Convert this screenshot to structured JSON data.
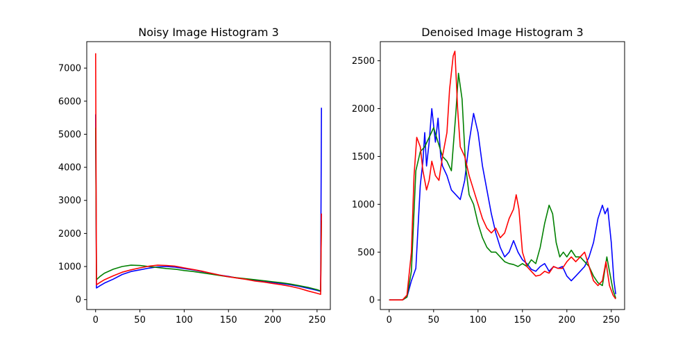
{
  "chart_data": [
    {
      "type": "line",
      "title": "Noisy Image Histogram 3",
      "xlabel": "",
      "ylabel": "",
      "xlim": [
        -10,
        265
      ],
      "ylim": [
        -300,
        7800
      ],
      "x_ticks": [
        0,
        50,
        100,
        150,
        200,
        250
      ],
      "y_ticks": [
        0,
        1000,
        2000,
        3000,
        4000,
        5000,
        6000,
        7000
      ],
      "grid": false,
      "series": [
        {
          "name": "blue",
          "color": "#0000ff",
          "points": [
            [
              0,
              5600
            ],
            [
              1,
              350
            ],
            [
              5,
              420
            ],
            [
              10,
              500
            ],
            [
              20,
              620
            ],
            [
              30,
              760
            ],
            [
              40,
              850
            ],
            [
              50,
              900
            ],
            [
              60,
              950
            ],
            [
              70,
              990
            ],
            [
              80,
              1000
            ],
            [
              90,
              980
            ],
            [
              100,
              940
            ],
            [
              110,
              900
            ],
            [
              120,
              850
            ],
            [
              130,
              800
            ],
            [
              140,
              740
            ],
            [
              150,
              700
            ],
            [
              160,
              650
            ],
            [
              170,
              620
            ],
            [
              180,
              580
            ],
            [
              190,
              560
            ],
            [
              200,
              520
            ],
            [
              210,
              490
            ],
            [
              220,
              450
            ],
            [
              230,
              400
            ],
            [
              240,
              340
            ],
            [
              250,
              280
            ],
            [
              254,
              250
            ],
            [
              255,
              5800
            ]
          ]
        },
        {
          "name": "green",
          "color": "#008000",
          "points": [
            [
              0,
              5200
            ],
            [
              1,
              600
            ],
            [
              5,
              700
            ],
            [
              10,
              800
            ],
            [
              20,
              920
            ],
            [
              30,
              1000
            ],
            [
              40,
              1040
            ],
            [
              50,
              1030
            ],
            [
              60,
              1000
            ],
            [
              70,
              970
            ],
            [
              80,
              940
            ],
            [
              90,
              920
            ],
            [
              100,
              880
            ],
            [
              110,
              850
            ],
            [
              120,
              810
            ],
            [
              130,
              770
            ],
            [
              140,
              730
            ],
            [
              150,
              690
            ],
            [
              160,
              660
            ],
            [
              170,
              630
            ],
            [
              180,
              600
            ],
            [
              190,
              570
            ],
            [
              200,
              540
            ],
            [
              210,
              510
            ],
            [
              220,
              470
            ],
            [
              230,
              420
            ],
            [
              240,
              370
            ],
            [
              250,
              300
            ],
            [
              254,
              260
            ],
            [
              255,
              2400
            ]
          ]
        },
        {
          "name": "red",
          "color": "#ff0000",
          "points": [
            [
              0,
              7450
            ],
            [
              1,
              450
            ],
            [
              5,
              520
            ],
            [
              10,
              600
            ],
            [
              20,
              720
            ],
            [
              30,
              830
            ],
            [
              40,
              900
            ],
            [
              50,
              960
            ],
            [
              60,
              1010
            ],
            [
              70,
              1040
            ],
            [
              80,
              1030
            ],
            [
              90,
              1010
            ],
            [
              100,
              960
            ],
            [
              110,
              910
            ],
            [
              120,
              860
            ],
            [
              130,
              800
            ],
            [
              140,
              740
            ],
            [
              150,
              690
            ],
            [
              160,
              650
            ],
            [
              170,
              610
            ],
            [
              180,
              560
            ],
            [
              190,
              530
            ],
            [
              200,
              490
            ],
            [
              210,
              450
            ],
            [
              220,
              400
            ],
            [
              230,
              340
            ],
            [
              240,
              260
            ],
            [
              250,
              190
            ],
            [
              254,
              160
            ],
            [
              255,
              2600
            ]
          ]
        }
      ]
    },
    {
      "type": "line",
      "title": "Denoised Image Histogram 3",
      "xlabel": "",
      "ylabel": "",
      "xlim": [
        -10,
        265
      ],
      "ylim": [
        -100,
        2700
      ],
      "x_ticks": [
        0,
        50,
        100,
        150,
        200,
        250
      ],
      "y_ticks": [
        0,
        500,
        1000,
        1500,
        2000,
        2500
      ],
      "grid": false,
      "series": [
        {
          "name": "blue",
          "color": "#0000ff",
          "points": [
            [
              0,
              0
            ],
            [
              15,
              0
            ],
            [
              20,
              30
            ],
            [
              25,
              200
            ],
            [
              30,
              330
            ],
            [
              35,
              1200
            ],
            [
              38,
              1450
            ],
            [
              40,
              1750
            ],
            [
              42,
              1400
            ],
            [
              45,
              1650
            ],
            [
              48,
              2000
            ],
            [
              52,
              1650
            ],
            [
              55,
              1900
            ],
            [
              58,
              1500
            ],
            [
              60,
              1400
            ],
            [
              65,
              1300
            ],
            [
              70,
              1150
            ],
            [
              75,
              1100
            ],
            [
              80,
              1050
            ],
            [
              85,
              1250
            ],
            [
              90,
              1650
            ],
            [
              95,
              1950
            ],
            [
              100,
              1750
            ],
            [
              105,
              1400
            ],
            [
              110,
              1150
            ],
            [
              115,
              900
            ],
            [
              120,
              700
            ],
            [
              125,
              550
            ],
            [
              130,
              450
            ],
            [
              135,
              500
            ],
            [
              140,
              620
            ],
            [
              145,
              500
            ],
            [
              150,
              420
            ],
            [
              155,
              380
            ],
            [
              160,
              320
            ],
            [
              165,
              300
            ],
            [
              170,
              350
            ],
            [
              175,
              380
            ],
            [
              180,
              300
            ],
            [
              185,
              350
            ],
            [
              190,
              330
            ],
            [
              195,
              350
            ],
            [
              200,
              250
            ],
            [
              205,
              200
            ],
            [
              210,
              250
            ],
            [
              215,
              300
            ],
            [
              220,
              350
            ],
            [
              225,
              450
            ],
            [
              230,
              600
            ],
            [
              235,
              850
            ],
            [
              240,
              990
            ],
            [
              243,
              900
            ],
            [
              246,
              960
            ],
            [
              250,
              600
            ],
            [
              253,
              200
            ],
            [
              255,
              60
            ]
          ]
        },
        {
          "name": "green",
          "color": "#008000",
          "points": [
            [
              0,
              0
            ],
            [
              15,
              0
            ],
            [
              20,
              30
            ],
            [
              25,
              300
            ],
            [
              30,
              1350
            ],
            [
              35,
              1550
            ],
            [
              40,
              1600
            ],
            [
              45,
              1700
            ],
            [
              50,
              1800
            ],
            [
              55,
              1650
            ],
            [
              60,
              1500
            ],
            [
              65,
              1450
            ],
            [
              70,
              1350
            ],
            [
              75,
              1950
            ],
            [
              78,
              2370
            ],
            [
              82,
              2100
            ],
            [
              86,
              1400
            ],
            [
              90,
              1100
            ],
            [
              95,
              1000
            ],
            [
              100,
              800
            ],
            [
              105,
              650
            ],
            [
              110,
              550
            ],
            [
              115,
              500
            ],
            [
              120,
              500
            ],
            [
              125,
              450
            ],
            [
              130,
              400
            ],
            [
              135,
              380
            ],
            [
              140,
              370
            ],
            [
              145,
              350
            ],
            [
              150,
              380
            ],
            [
              155,
              350
            ],
            [
              160,
              420
            ],
            [
              165,
              380
            ],
            [
              170,
              550
            ],
            [
              175,
              800
            ],
            [
              180,
              990
            ],
            [
              184,
              900
            ],
            [
              188,
              600
            ],
            [
              192,
              450
            ],
            [
              196,
              500
            ],
            [
              200,
              450
            ],
            [
              205,
              520
            ],
            [
              210,
              450
            ],
            [
              215,
              450
            ],
            [
              220,
              400
            ],
            [
              225,
              350
            ],
            [
              230,
              250
            ],
            [
              235,
              180
            ],
            [
              240,
              150
            ],
            [
              245,
              450
            ],
            [
              248,
              300
            ],
            [
              252,
              100
            ],
            [
              255,
              20
            ]
          ]
        },
        {
          "name": "red",
          "color": "#ff0000",
          "points": [
            [
              0,
              0
            ],
            [
              15,
              0
            ],
            [
              20,
              50
            ],
            [
              25,
              500
            ],
            [
              28,
              1300
            ],
            [
              31,
              1700
            ],
            [
              35,
              1600
            ],
            [
              38,
              1350
            ],
            [
              42,
              1150
            ],
            [
              45,
              1250
            ],
            [
              48,
              1450
            ],
            [
              52,
              1300
            ],
            [
              56,
              1250
            ],
            [
              60,
              1500
            ],
            [
              65,
              1750
            ],
            [
              68,
              2200
            ],
            [
              72,
              2550
            ],
            [
              74,
              2600
            ],
            [
              77,
              2000
            ],
            [
              80,
              1600
            ],
            [
              85,
              1500
            ],
            [
              90,
              1300
            ],
            [
              95,
              1150
            ],
            [
              100,
              1000
            ],
            [
              105,
              850
            ],
            [
              110,
              750
            ],
            [
              115,
              700
            ],
            [
              120,
              750
            ],
            [
              125,
              650
            ],
            [
              130,
              700
            ],
            [
              135,
              850
            ],
            [
              140,
              950
            ],
            [
              143,
              1100
            ],
            [
              146,
              950
            ],
            [
              150,
              500
            ],
            [
              155,
              350
            ],
            [
              160,
              300
            ],
            [
              165,
              250
            ],
            [
              170,
              260
            ],
            [
              175,
              300
            ],
            [
              180,
              280
            ],
            [
              185,
              350
            ],
            [
              190,
              330
            ],
            [
              195,
              330
            ],
            [
              200,
              400
            ],
            [
              205,
              450
            ],
            [
              210,
              400
            ],
            [
              215,
              450
            ],
            [
              220,
              500
            ],
            [
              225,
              350
            ],
            [
              230,
              200
            ],
            [
              235,
              150
            ],
            [
              240,
              200
            ],
            [
              244,
              400
            ],
            [
              248,
              150
            ],
            [
              252,
              50
            ],
            [
              255,
              10
            ]
          ]
        }
      ]
    }
  ]
}
